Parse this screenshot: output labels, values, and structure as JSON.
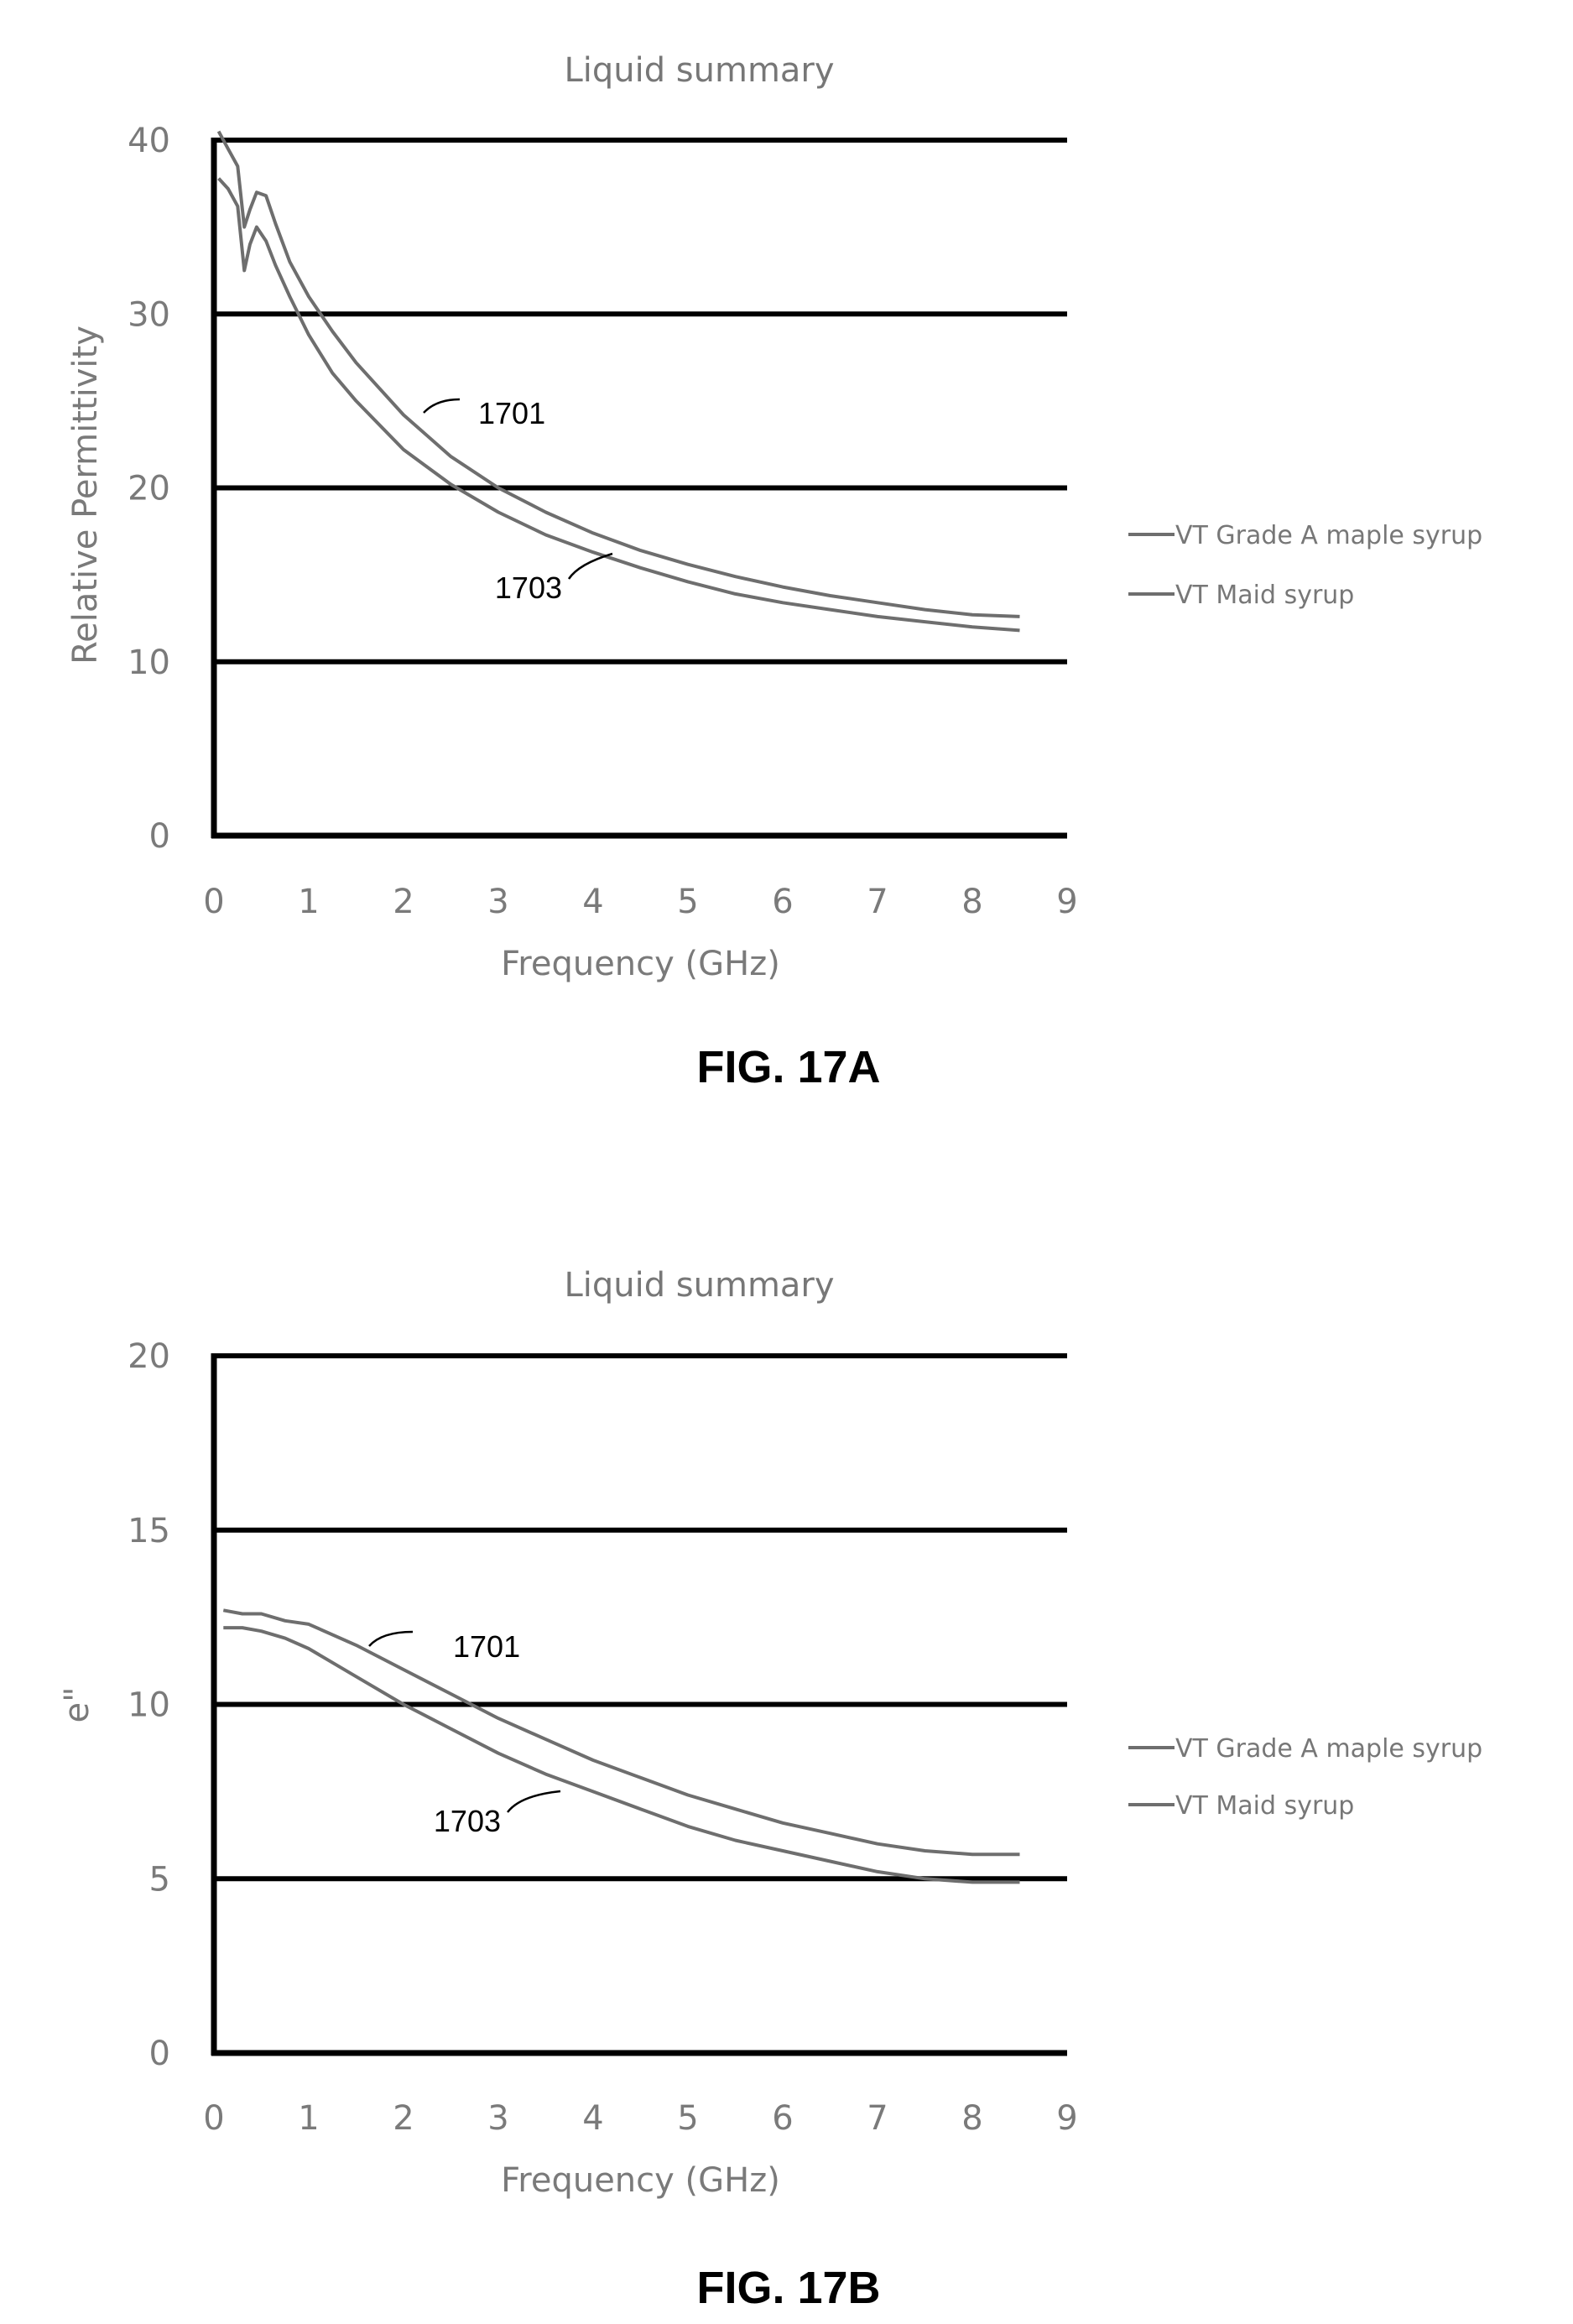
{
  "chart_data": [
    {
      "type": "line",
      "title": "Liquid summary",
      "xlabel": "Frequency (GHz)",
      "ylabel": "Relative Permittivity",
      "xlim": [
        0,
        9
      ],
      "ylim": [
        0,
        40
      ],
      "xticks": [
        "0",
        "1",
        "2",
        "3",
        "4",
        "5",
        "6",
        "7",
        "8",
        "9"
      ],
      "yticks": [
        "0",
        "10",
        "20",
        "30",
        "40"
      ],
      "grid": "horizontal",
      "legend_position": "right",
      "series": [
        {
          "name": "VT Grade A maple syrup",
          "ref": "1701",
          "x": [
            0.05,
            0.15,
            0.25,
            0.32,
            0.38,
            0.45,
            0.55,
            0.65,
            0.8,
            1.0,
            1.25,
            1.5,
            2.0,
            2.5,
            3.0,
            3.5,
            4.0,
            4.5,
            5.0,
            5.5,
            6.0,
            6.5,
            7.0,
            7.5,
            8.0,
            8.5
          ],
          "values": [
            40.5,
            39.5,
            38.5,
            35.0,
            36.0,
            37.0,
            36.8,
            35.2,
            33.0,
            31.0,
            29.0,
            27.2,
            24.2,
            21.8,
            20.0,
            18.6,
            17.4,
            16.4,
            15.6,
            14.9,
            14.3,
            13.8,
            13.4,
            13.0,
            12.7,
            12.6
          ]
        },
        {
          "name": "VT Maid syrup",
          "ref": "1703",
          "x": [
            0.05,
            0.15,
            0.25,
            0.32,
            0.38,
            0.45,
            0.55,
            0.65,
            0.8,
            1.0,
            1.25,
            1.5,
            2.0,
            2.5,
            3.0,
            3.5,
            4.0,
            4.5,
            5.0,
            5.5,
            6.0,
            6.5,
            7.0,
            7.5,
            8.0,
            8.5
          ],
          "values": [
            37.8,
            37.2,
            36.2,
            32.5,
            34.0,
            35.0,
            34.2,
            32.8,
            31.0,
            28.8,
            26.6,
            25.0,
            22.2,
            20.2,
            18.6,
            17.3,
            16.3,
            15.4,
            14.6,
            13.9,
            13.4,
            13.0,
            12.6,
            12.3,
            12.0,
            11.8
          ]
        }
      ],
      "figure_label": "FIG. 17A"
    },
    {
      "type": "line",
      "title": "Liquid summary",
      "xlabel": "Frequency (GHz)",
      "ylabel": "e\"",
      "xlim": [
        0,
        9
      ],
      "ylim": [
        0,
        20
      ],
      "xticks": [
        "0",
        "1",
        "2",
        "3",
        "4",
        "5",
        "6",
        "7",
        "8",
        "9"
      ],
      "yticks": [
        "0",
        "5",
        "10",
        "15",
        "20"
      ],
      "grid": "horizontal",
      "legend_position": "right",
      "series": [
        {
          "name": "VT Grade A maple syrup",
          "ref": "1701",
          "x": [
            0.1,
            0.3,
            0.5,
            0.75,
            1.0,
            1.5,
            2.0,
            2.5,
            3.0,
            3.5,
            4.0,
            4.5,
            5.0,
            5.5,
            6.0,
            6.5,
            7.0,
            7.5,
            8.0,
            8.5
          ],
          "values": [
            12.7,
            12.6,
            12.6,
            12.4,
            12.3,
            11.7,
            11.0,
            10.3,
            9.6,
            9.0,
            8.4,
            7.9,
            7.4,
            7.0,
            6.6,
            6.3,
            6.0,
            5.8,
            5.7,
            5.7
          ]
        },
        {
          "name": "VT Maid syrup",
          "ref": "1703",
          "x": [
            0.1,
            0.3,
            0.5,
            0.75,
            1.0,
            1.5,
            2.0,
            2.5,
            3.0,
            3.5,
            4.0,
            4.5,
            5.0,
            5.5,
            6.0,
            6.5,
            7.0,
            7.5,
            8.0,
            8.5
          ],
          "values": [
            12.2,
            12.2,
            12.1,
            11.9,
            11.6,
            10.8,
            10.0,
            9.3,
            8.6,
            8.0,
            7.5,
            7.0,
            6.5,
            6.1,
            5.8,
            5.5,
            5.2,
            5.0,
            4.9,
            4.9
          ]
        }
      ],
      "figure_label": "FIG. 17B"
    }
  ]
}
